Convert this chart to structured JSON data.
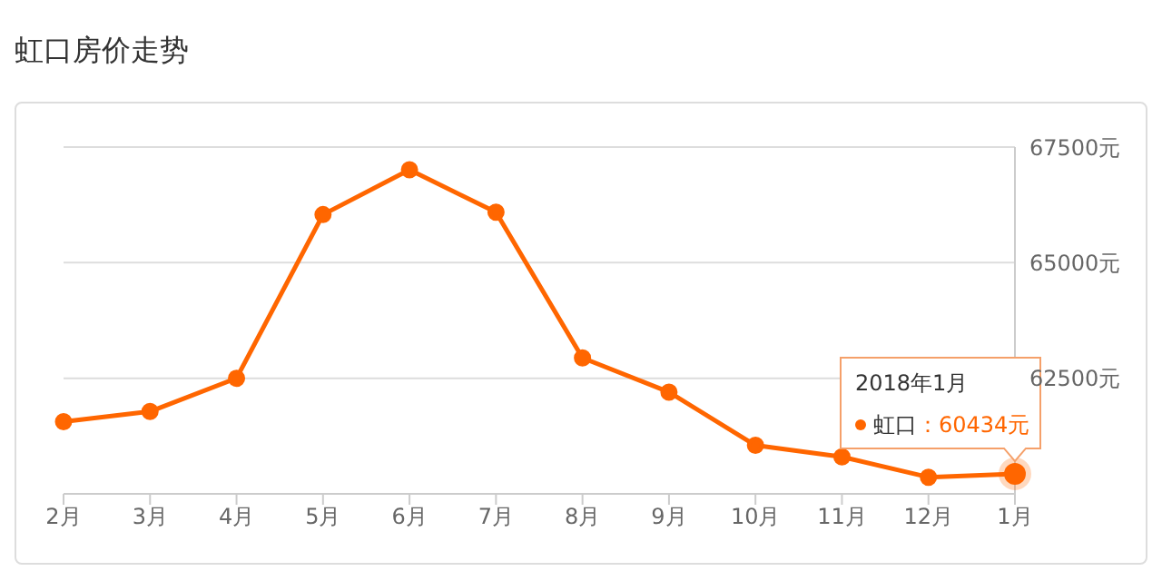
{
  "chart_data": {
    "type": "line",
    "title": "虹口房价走势",
    "categories": [
      "2月",
      "3月",
      "4月",
      "5月",
      "6月",
      "7月",
      "8月",
      "9月",
      "10月",
      "11月",
      "12月",
      "1月"
    ],
    "series": [
      {
        "name": "虹口",
        "color": "#ff6600",
        "values": [
          61560,
          61780,
          62500,
          66040,
          67010,
          66090,
          62940,
          62200,
          61050,
          60800,
          60360,
          60434
        ]
      }
    ],
    "ylim": [
      60000,
      67500
    ],
    "yticks": [
      {
        "value": 62500,
        "label": "62500元"
      },
      {
        "value": 65000,
        "label": "65000元"
      },
      {
        "value": 67500,
        "label": "67500元"
      }
    ],
    "grid": "y",
    "marker": "circle",
    "line_style": "solid",
    "annotations": [
      "2018年1月",
      {
        "text": "：60434元",
        "x": "1月",
        "y": 60434
      }
    ]
  }
}
